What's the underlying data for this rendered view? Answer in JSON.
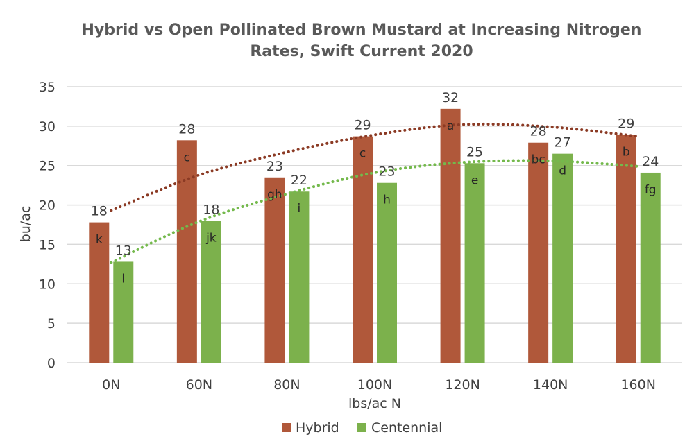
{
  "chart_data": {
    "type": "bar",
    "title_lines": [
      "Hybrid vs Open Pollinated Brown Mustard at Increasing Nitrogen",
      "Rates, Swift Current 2020"
    ],
    "xlabel": "lbs/ac N",
    "ylabel": "bu/ac",
    "ylim": [
      0,
      35
    ],
    "yticks": [
      0,
      5,
      10,
      15,
      20,
      25,
      30,
      35
    ],
    "grid": true,
    "legend_position": "bottom",
    "categories": [
      "0N",
      "60N",
      "80N",
      "100N",
      "120N",
      "140N",
      "160N"
    ],
    "series": [
      {
        "name": "Hybrid",
        "color": "#b0583a",
        "values": [
          17.8,
          28.2,
          23.5,
          28.7,
          32.2,
          27.9,
          28.9
        ],
        "value_labels": [
          "18",
          "28",
          "23",
          "29",
          "32",
          "28",
          "29"
        ],
        "letters": [
          "k",
          "c",
          "gh",
          "c",
          "a",
          "bc",
          "b"
        ],
        "trend": [
          19.3,
          23.8,
          26.7,
          28.9,
          30.2,
          29.9,
          28.7
        ]
      },
      {
        "name": "Centennial",
        "color": "#7cb14c",
        "values": [
          12.8,
          18.0,
          21.7,
          22.8,
          25.3,
          26.5,
          24.1
        ],
        "value_labels": [
          "13",
          "18",
          "22",
          "23",
          "25",
          "27",
          "24"
        ],
        "letters": [
          "l",
          "jk",
          "i",
          "h",
          "e",
          "d",
          "fg"
        ],
        "trend": [
          12.7,
          17.9,
          21.4,
          24.1,
          25.4,
          25.6,
          24.9
        ]
      }
    ],
    "trendline_colors": [
      "#8b3a24",
      "#74b94c"
    ]
  }
}
